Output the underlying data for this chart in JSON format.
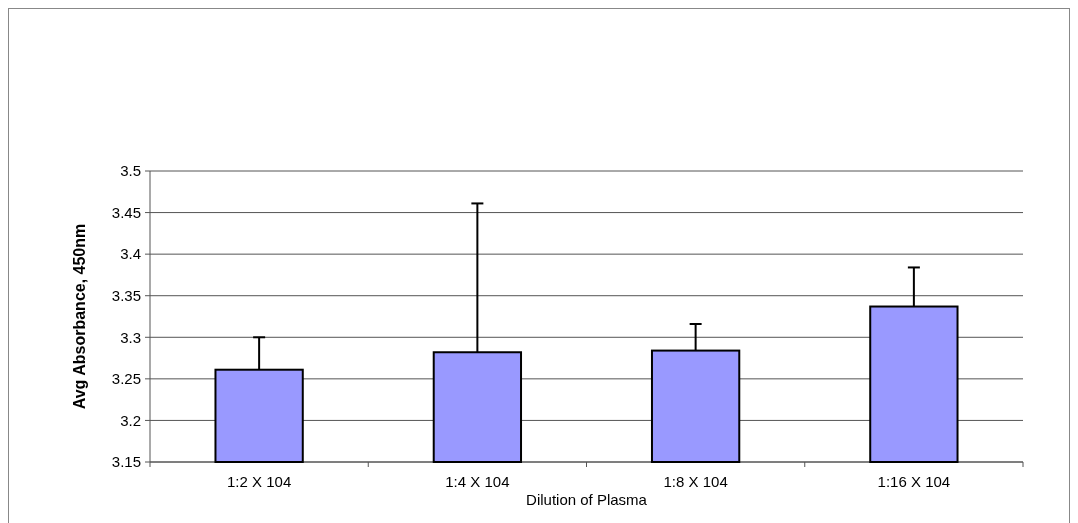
{
  "chart_data": {
    "type": "bar",
    "xlabel": "Dilution of Plasma",
    "ylabel": "Avg Absorbance, 450nm",
    "categories": [
      "1:2 X 104",
      "1:4 X 104",
      "1:8 X 104",
      "1:16 X 104"
    ],
    "values": [
      3.261,
      3.282,
      3.284,
      3.337
    ],
    "errors": [
      [
        3.261,
        3.3
      ],
      [
        3.282,
        3.461
      ],
      [
        3.284,
        3.316
      ],
      [
        3.337,
        3.384
      ]
    ],
    "color": "#9999ff",
    "ylim": [
      3.15,
      3.5
    ],
    "yticks": [
      3.15,
      3.2,
      3.25,
      3.3,
      3.35,
      3.4,
      3.45,
      3.5
    ],
    "grid": "y"
  }
}
